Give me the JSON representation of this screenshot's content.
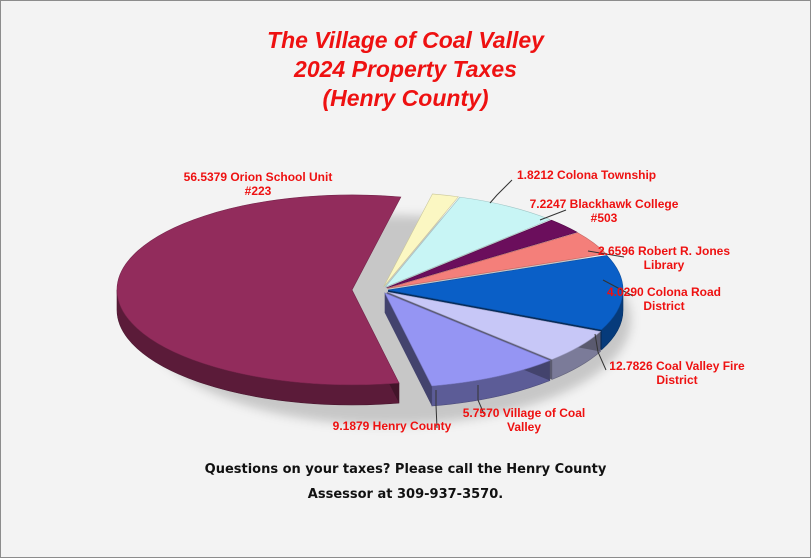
{
  "title": {
    "line1": "The Village of Coal Valley",
    "line2": "2024 Property Taxes",
    "line3": "(Henry County)"
  },
  "footer": {
    "line1": "Questions on your taxes? Please call the Henry County",
    "line2": "Assessor at 309-937-3570."
  },
  "chart_data": {
    "type": "pie",
    "style": "3d-exploded",
    "title": "The Village of Coal Valley 2024 Property Taxes (Henry County)",
    "slices": [
      {
        "label": [
          "1.8212 Colona Township"
        ],
        "name": "Colona Township",
        "value": 1.8212,
        "color": "#fbf7c2"
      },
      {
        "label": [
          "7.2247 Blackhawk College",
          "#503"
        ],
        "name": "Blackhawk College #503",
        "value": 7.2247,
        "color": "#c8f5f5"
      },
      {
        "label": [
          "2.6596 Robert R. Jones",
          "Library"
        ],
        "name": "Robert R. Jones Library",
        "value": 2.6596,
        "color": "#6b0e5c"
      },
      {
        "label": [
          "4.0290 Colona Road",
          "District"
        ],
        "name": "Colona Road District",
        "value": 4.029,
        "color": "#f47f7a"
      },
      {
        "label": [
          "12.7826 Coal Valley Fire",
          "District"
        ],
        "name": "Coal Valley Fire District",
        "value": 12.7826,
        "color": "#0a5fc7"
      },
      {
        "label": [
          "5.7570 Village of Coal",
          "Valley"
        ],
        "name": "Village of Coal Valley",
        "value": 5.757,
        "color": "#c7c7f7"
      },
      {
        "label": [
          "9.1879 Henry County"
        ],
        "name": "Henry County",
        "value": 9.1879,
        "color": "#9595f3"
      },
      {
        "label": [
          "56.5379 Orion School Unit",
          "#223"
        ],
        "name": "Orion School Unit #223",
        "value": 56.5379,
        "color": "#922c5c"
      }
    ],
    "label_color": "#ee1111"
  }
}
